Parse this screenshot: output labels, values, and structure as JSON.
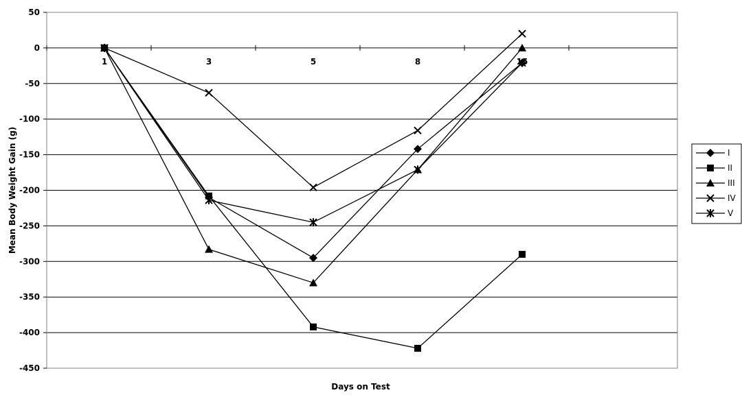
{
  "chart_data": {
    "type": "line",
    "title": "",
    "xlabel": "Days on Test",
    "ylabel": "Mean Body Weight Gain (g)",
    "categories": [
      "1",
      "3",
      "5",
      "8",
      "15"
    ],
    "ylim": [
      -450,
      50
    ],
    "yticks": [
      50,
      0,
      -50,
      -100,
      -150,
      -200,
      -250,
      -300,
      -350,
      -400,
      -450
    ],
    "grid": true,
    "legend_position": "right",
    "series": [
      {
        "name": "I",
        "marker": "diamond",
        "values": [
          0,
          -210,
          -295,
          -142,
          -21
        ]
      },
      {
        "name": "II",
        "marker": "square",
        "values": [
          0,
          -208,
          -392,
          -422,
          -290
        ]
      },
      {
        "name": "III",
        "marker": "triangle",
        "values": [
          0,
          -283,
          -330,
          -171,
          0
        ]
      },
      {
        "name": "IV",
        "marker": "x",
        "values": [
          0,
          -63,
          -196,
          -116,
          20
        ]
      },
      {
        "name": "V",
        "marker": "star",
        "values": [
          0,
          -214,
          -245,
          -171,
          -21
        ]
      }
    ],
    "colors": {
      "line": "#000000",
      "grid": "#000000",
      "plot_border": "#808080"
    }
  }
}
